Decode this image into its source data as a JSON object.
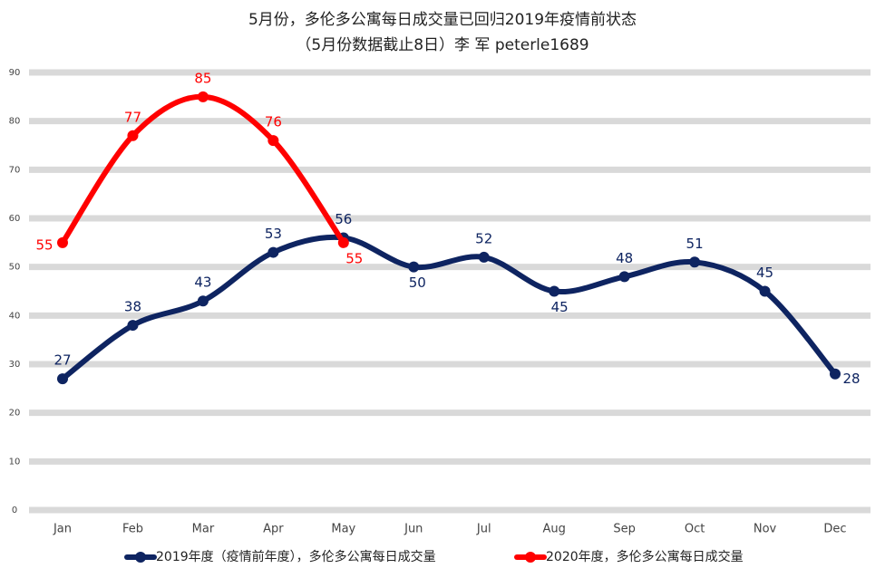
{
  "chart_data": {
    "type": "line",
    "title": "5月份，多伦多公寓每日成交量已回归2019年疫情前状态",
    "subtitle": "（5月份数据截止8日）李 军 peterle1689",
    "categories": [
      "Jan",
      "Feb",
      "Mar",
      "Apr",
      "May",
      "Jun",
      "Jul",
      "Aug",
      "Sep",
      "Oct",
      "Nov",
      "Dec"
    ],
    "series": [
      {
        "name": "2019年度（疫情前年度），多伦多公寓每日成交量",
        "color": "#0e2461",
        "values": [
          27,
          38,
          43,
          53,
          56,
          50,
          52,
          45,
          48,
          51,
          45,
          28
        ]
      },
      {
        "name": "2020年度，多伦多公寓每日成交量",
        "color": "#ff0000",
        "values": [
          55,
          77,
          85,
          76,
          55,
          null,
          null,
          null,
          null,
          null,
          null,
          null
        ]
      }
    ],
    "ylim": [
      0,
      90
    ],
    "yticks": [
      0,
      10,
      20,
      30,
      40,
      50,
      60,
      70,
      80,
      90
    ],
    "grid": true,
    "legend": "bottom"
  }
}
